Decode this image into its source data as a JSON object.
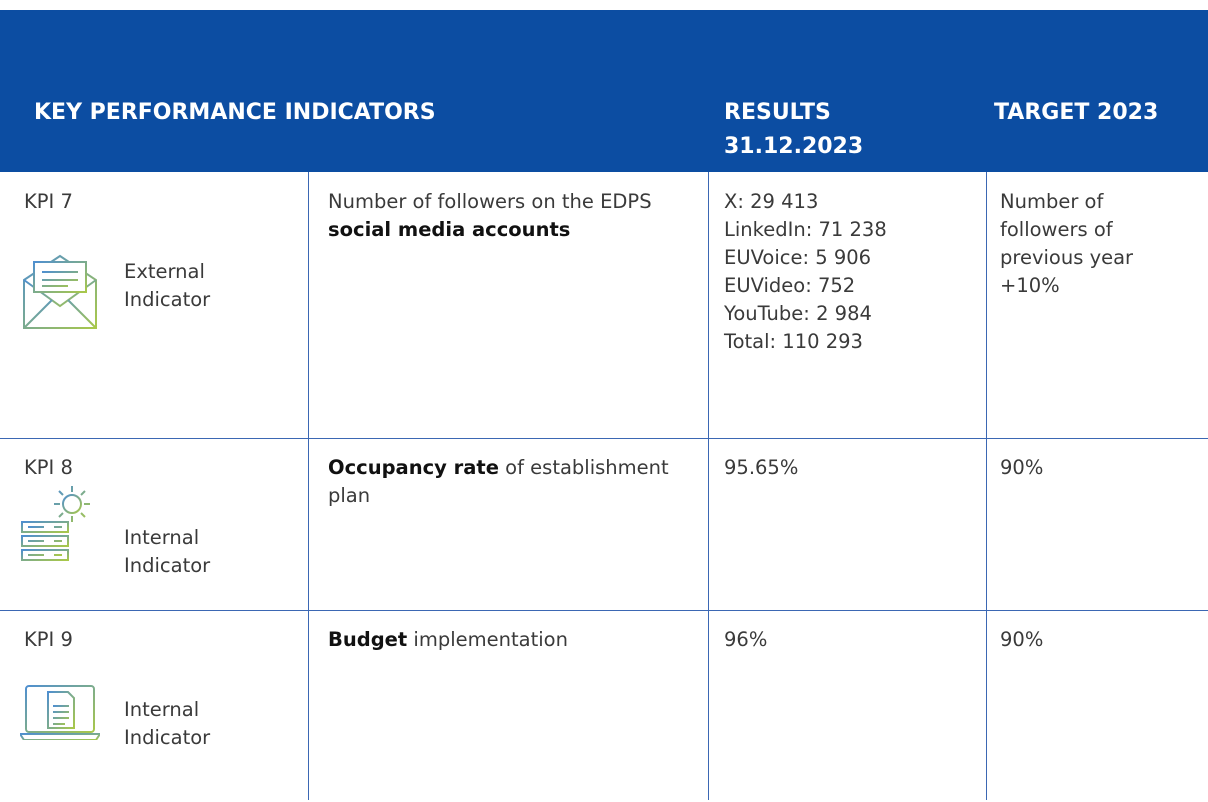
{
  "header": {
    "indicators": "KEY PERFORMANCE INDICATORS",
    "results": [
      "RESULTS",
      "31.12.2023"
    ],
    "target": "TARGET 2023"
  },
  "rows": [
    {
      "kpi": "KPI 7",
      "indicator": [
        "External",
        "Indicator"
      ],
      "description": [
        {
          "text": "Number of followers on the EDPS ",
          "bold": false
        },
        {
          "text": "social media accounts",
          "bold": true
        }
      ],
      "results": [
        "X: 29 413",
        "LinkedIn: 71 238",
        "EUVoice: 5 906",
        "EUVideo: 752",
        "YouTube: 2 984",
        "Total: 110 293"
      ],
      "target": "Number of followers of previous year +10%"
    },
    {
      "kpi": "KPI 8",
      "indicator": [
        "Internal",
        "Indicator"
      ],
      "description": [
        {
          "text": "Occupancy rate",
          "bold": true
        },
        {
          "text": " of establishment plan",
          "bold": false
        }
      ],
      "results": [
        "95.65%"
      ],
      "target": "90%"
    },
    {
      "kpi": "KPI 9",
      "indicator": [
        "Internal",
        "Indicator"
      ],
      "description": [
        {
          "text": "Budget",
          "bold": true
        },
        {
          "text": " implementation",
          "bold": false
        }
      ],
      "results": [
        "96%"
      ],
      "target": "90%"
    }
  ]
}
